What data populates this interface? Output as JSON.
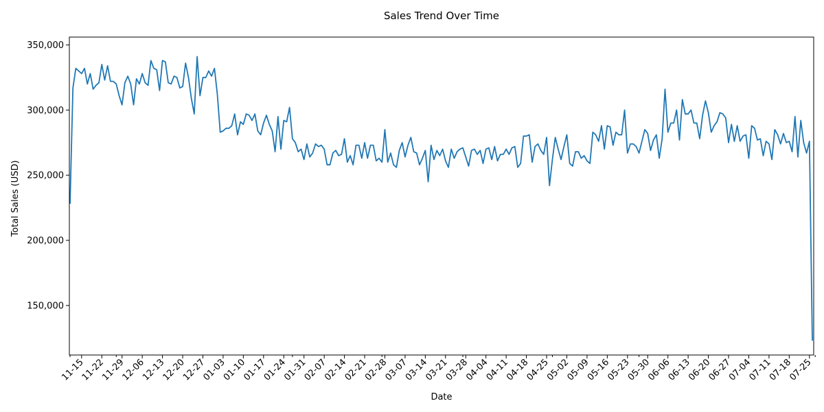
{
  "chart_data": {
    "type": "line",
    "title": "Sales Trend Over Time",
    "xlabel": "Date",
    "ylabel": "Total Sales (USD)",
    "ylim": [
      112000,
      356000
    ],
    "y_ticks": [
      {
        "value": 150000,
        "label": "150,000"
      },
      {
        "value": 200000,
        "label": "200,000"
      },
      {
        "value": 250000,
        "label": "250,000"
      },
      {
        "value": 300000,
        "label": "300,000"
      },
      {
        "value": 350000,
        "label": "350,000"
      }
    ],
    "x_ticks": [
      "11-15",
      "11-22",
      "11-29",
      "12-06",
      "12-13",
      "12-20",
      "12-27",
      "01-03",
      "01-10",
      "01-17",
      "01-24",
      "01-31",
      "02-07",
      "02-14",
      "02-21",
      "02-28",
      "03-07",
      "03-14",
      "03-21",
      "03-28",
      "04-04",
      "04-11",
      "04-18",
      "04-25",
      "05-02",
      "05-09",
      "05-16",
      "05-23",
      "05-30",
      "06-06",
      "06-13",
      "06-20",
      "06-27",
      "07-04",
      "07-11",
      "07-18",
      "07-25"
    ],
    "grid": false,
    "line_color": "#1f77b4",
    "series": [
      {
        "values": [
          228000,
          317000,
          332000,
          330000,
          328000,
          332000,
          320000,
          328000,
          316000,
          319000,
          321000,
          335000,
          323000,
          334000,
          322000,
          322000,
          320000,
          311000,
          304000,
          321000,
          326000,
          320000,
          304000,
          324000,
          320000,
          328000,
          321000,
          319000,
          338000,
          332000,
          331000,
          315000,
          338000,
          337000,
          321000,
          320000,
          326000,
          325000,
          317000,
          318000,
          336000,
          325000,
          309000,
          297000,
          341000,
          311000,
          325000,
          325000,
          330000,
          326000,
          332000,
          312000,
          283000,
          284000,
          286000,
          286000,
          288000,
          297000,
          281000,
          291000,
          289000,
          297000,
          296000,
          292000,
          297000,
          284000,
          281000,
          290000,
          296000,
          289000,
          284000,
          268000,
          295000,
          270000,
          292000,
          291000,
          302000,
          278000,
          275000,
          268000,
          270000,
          262000,
          274000,
          264000,
          267000,
          274000,
          272000,
          273000,
          270000,
          258000,
          258000,
          267000,
          269000,
          265000,
          266000,
          278000,
          260000,
          265000,
          258000,
          273000,
          273000,
          263000,
          275000,
          263000,
          273000,
          273000,
          261000,
          263000,
          260000,
          285000,
          260000,
          267000,
          258000,
          256000,
          269000,
          275000,
          264000,
          273000,
          279000,
          268000,
          267000,
          258000,
          263000,
          269000,
          245000,
          273000,
          262000,
          269000,
          265000,
          270000,
          261000,
          256000,
          270000,
          263000,
          268000,
          270000,
          271000,
          264000,
          257000,
          269000,
          270000,
          266000,
          269000,
          259000,
          270000,
          271000,
          262000,
          272000,
          261000,
          266000,
          266000,
          270000,
          266000,
          271000,
          272000,
          256000,
          259000,
          280000,
          280000,
          281000,
          260000,
          272000,
          274000,
          269000,
          266000,
          279000,
          242000,
          262000,
          279000,
          270000,
          262000,
          272000,
          281000,
          259000,
          257000,
          268000,
          268000,
          263000,
          265000,
          261000,
          259000,
          283000,
          281000,
          276000,
          288000,
          270000,
          288000,
          287000,
          273000,
          283000,
          281000,
          281000,
          300000,
          267000,
          274000,
          274000,
          272000,
          267000,
          276000,
          285000,
          282000,
          269000,
          277000,
          281000,
          263000,
          278000,
          316000,
          283000,
          290000,
          290000,
          300000,
          277000,
          308000,
          297000,
          297000,
          300000,
          290000,
          290000,
          278000,
          296000,
          307000,
          298000,
          283000,
          288000,
          291000,
          298000,
          297000,
          294000,
          275000,
          289000,
          276000,
          288000,
          276000,
          280000,
          281000,
          263000,
          288000,
          286000,
          277000,
          278000,
          265000,
          276000,
          274000,
          262000,
          285000,
          281000,
          274000,
          282000,
          275000,
          276000,
          268000,
          295000,
          264000,
          292000,
          275000,
          267000,
          276000,
          123000
        ]
      }
    ]
  }
}
